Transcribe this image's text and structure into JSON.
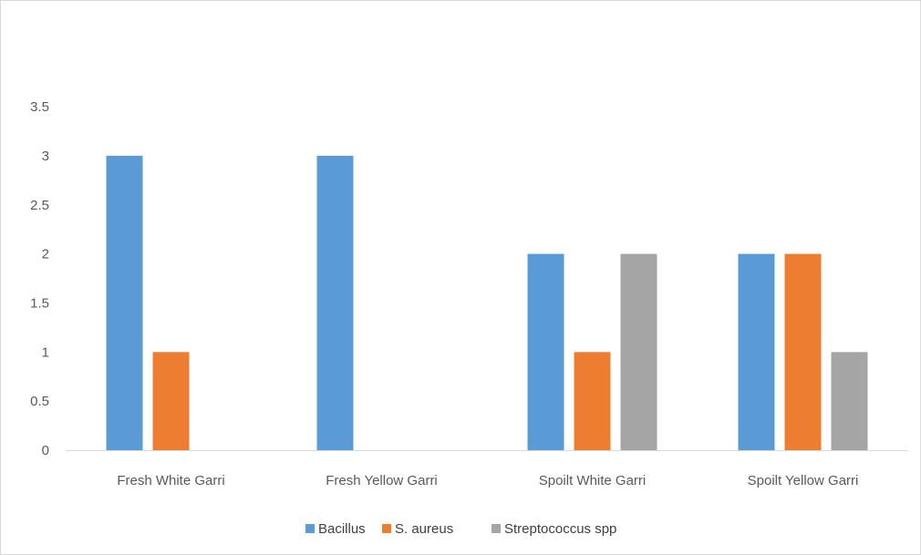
{
  "chart_data": {
    "type": "bar",
    "title": "",
    "xlabel": "",
    "ylabel": "",
    "categories": [
      "Fresh White Garri",
      "Fresh Yellow Garri",
      "Spoilt White Garri",
      "Spoilt Yellow Garri"
    ],
    "series": [
      {
        "name": "Bacillus",
        "color": "#5b9bd5",
        "values": [
          3,
          3,
          2,
          2
        ]
      },
      {
        "name": "S. aureus",
        "color": "#ed7d31",
        "values": [
          1,
          0,
          1,
          2
        ]
      },
      {
        "name": "Streptococcus spp",
        "color": "#a5a5a5",
        "values": [
          0,
          0,
          2,
          1
        ]
      }
    ],
    "ylim": [
      0,
      3.5
    ],
    "yticks": [
      "0",
      "0.5",
      "1",
      "1.5",
      "2",
      "2.5",
      "3",
      "3.5"
    ],
    "grid": false,
    "legend_position": "bottom"
  }
}
